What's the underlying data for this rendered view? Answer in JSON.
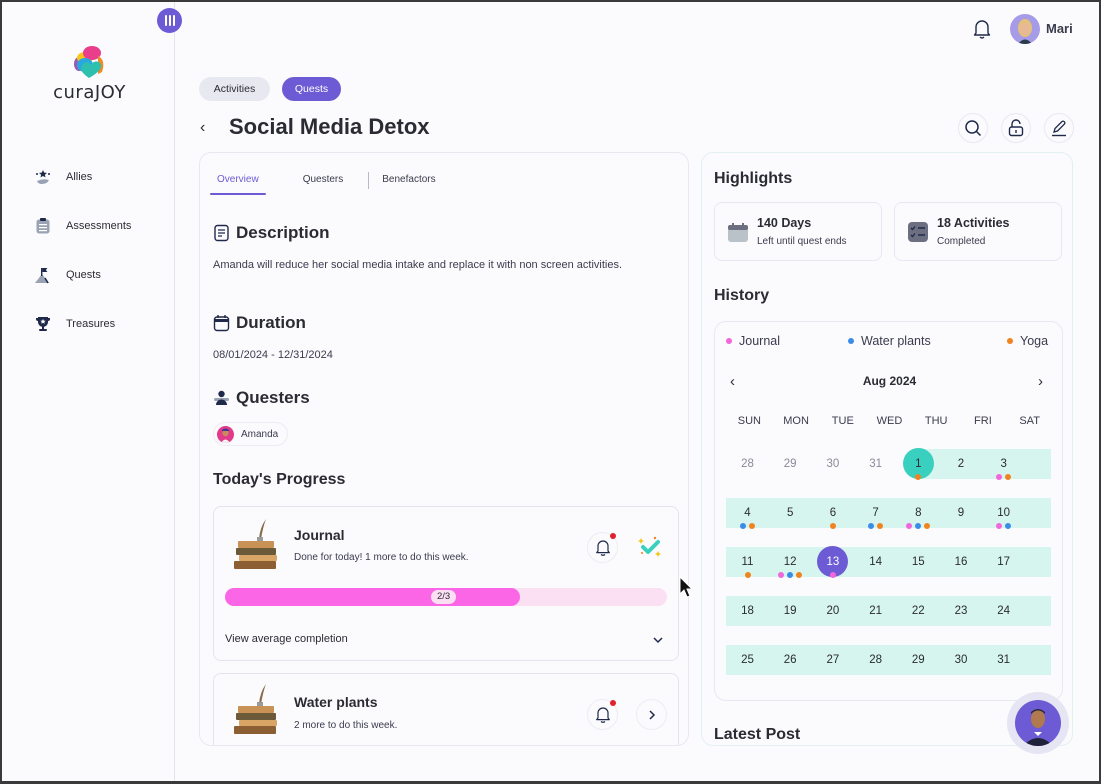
{
  "app": {
    "brand": "curaJOY",
    "user": {
      "name": "Mari"
    }
  },
  "sidebar": {
    "items": [
      {
        "label": "Allies",
        "icon": "allies-icon"
      },
      {
        "label": "Assessments",
        "icon": "clipboard-icon"
      },
      {
        "label": "Quests",
        "icon": "mountain-flag-icon"
      },
      {
        "label": "Treasures",
        "icon": "trophy-icon"
      }
    ]
  },
  "header": {
    "pills": [
      {
        "label": "Activities",
        "active": false
      },
      {
        "label": "Quests",
        "active": true
      }
    ],
    "title": "Social Media Detox",
    "actions": [
      "search-icon",
      "unlock-icon",
      "edit-icon"
    ]
  },
  "overview": {
    "tabs": [
      {
        "label": "Overview",
        "active": true
      },
      {
        "label": "Questers",
        "active": false
      },
      {
        "label": "Benefactors",
        "active": false
      }
    ],
    "description": {
      "heading": "Description",
      "text": "Amanda will reduce her social media intake and replace it with non screen activities."
    },
    "duration": {
      "heading": "Duration",
      "text": "08/01/2024 - 12/31/2024"
    },
    "questers": {
      "heading": "Questers",
      "people": [
        {
          "name": "Amanda"
        }
      ]
    },
    "progress": {
      "heading": "Today's Progress",
      "activities": [
        {
          "title": "Journal",
          "subtitle": "Done for today! 1 more to do this week.",
          "progress_label": "2/3",
          "progress_pct": 66.7,
          "done": true,
          "expand_label": "View average completion"
        },
        {
          "title": "Water plants",
          "subtitle": "2 more to do this week.",
          "done": false
        }
      ]
    }
  },
  "highlights": {
    "heading": "Highlights",
    "cards": [
      {
        "title": "140 Days",
        "subtitle": "Left until quest ends"
      },
      {
        "title": "18 Activities",
        "subtitle": "Completed"
      }
    ]
  },
  "history": {
    "heading": "History",
    "legend": [
      {
        "label": "Journal",
        "color": "#f266dc"
      },
      {
        "label": "Water plants",
        "color": "#3b8be8"
      },
      {
        "label": "Yoga",
        "color": "#f0831e"
      }
    ],
    "month": "Aug 2024",
    "weekdays": [
      "SUN",
      "MON",
      "TUE",
      "WED",
      "THU",
      "FRI",
      "SAT"
    ],
    "weeks": [
      [
        {
          "d": "28",
          "m": true
        },
        {
          "d": "29",
          "m": true
        },
        {
          "d": "30",
          "m": true
        },
        {
          "d": "31",
          "m": true
        },
        {
          "d": "1",
          "start": true,
          "dots": [
            "y"
          ]
        },
        {
          "d": "2"
        },
        {
          "d": "3",
          "dots": [
            "j",
            "y"
          ]
        }
      ],
      [
        {
          "d": "4",
          "dots": [
            "w",
            "y"
          ]
        },
        {
          "d": "5"
        },
        {
          "d": "6",
          "dots": [
            "y"
          ]
        },
        {
          "d": "7",
          "dots": [
            "w",
            "y"
          ]
        },
        {
          "d": "8",
          "dots": [
            "j",
            "w",
            "y"
          ]
        },
        {
          "d": "9"
        },
        {
          "d": "10",
          "dots": [
            "j",
            "w"
          ]
        }
      ],
      [
        {
          "d": "11",
          "dots": [
            "y"
          ]
        },
        {
          "d": "12",
          "dots": [
            "j",
            "w",
            "y"
          ]
        },
        {
          "d": "13",
          "today": true,
          "dots": [
            "j"
          ]
        },
        {
          "d": "14"
        },
        {
          "d": "15"
        },
        {
          "d": "16"
        },
        {
          "d": "17"
        }
      ],
      [
        {
          "d": "18"
        },
        {
          "d": "19"
        },
        {
          "d": "20"
        },
        {
          "d": "21"
        },
        {
          "d": "22"
        },
        {
          "d": "23"
        },
        {
          "d": "24"
        }
      ],
      [
        {
          "d": "25"
        },
        {
          "d": "26"
        },
        {
          "d": "27"
        },
        {
          "d": "28"
        },
        {
          "d": "29"
        },
        {
          "d": "30"
        },
        {
          "d": "31"
        }
      ]
    ]
  },
  "latest_post": {
    "heading": "Latest Post"
  },
  "colors": {
    "accent": "#6c5bd4",
    "teal": "#3ad0bf",
    "band": "#d6f5ee",
    "progress_pink": "#fb66e7",
    "progress_track": "#fbe0f4",
    "notify_red": "#e0202c"
  }
}
